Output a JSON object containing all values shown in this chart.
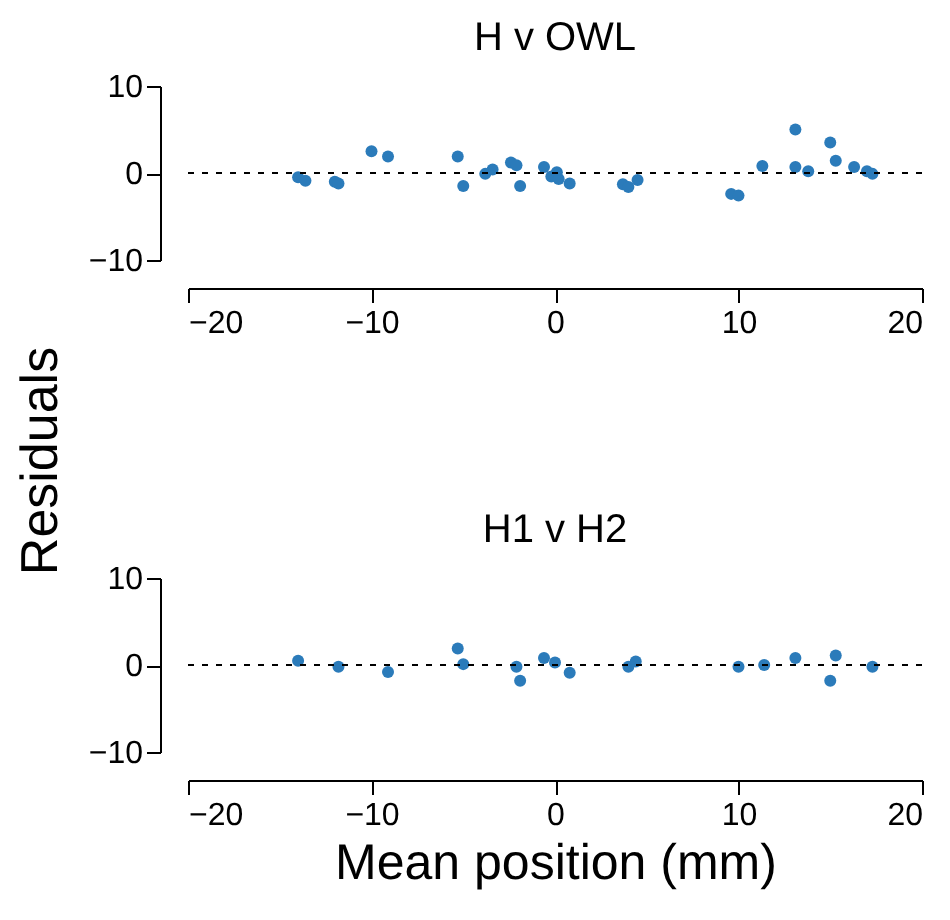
{
  "chart_data": [
    {
      "type": "scatter",
      "title": "H v OWL",
      "ylabel": "Residuals",
      "marker": "circle",
      "grid": false,
      "xlim": [
        -20,
        20
      ],
      "xticks": [
        -20,
        -10,
        0,
        10,
        20
      ],
      "ylim": [
        -10,
        10
      ],
      "yticks": [
        -10,
        0,
        10
      ],
      "ref_lines": [
        {
          "axis": "y",
          "value": 0,
          "color": "#000000",
          "line_style": "dashed"
        }
      ],
      "series": [
        {
          "color": "#2b7bba",
          "x": [
            -14.0,
            -13.6,
            -12.0,
            -11.8,
            -10.0,
            -9.1,
            -5.3,
            -5.0,
            -3.8,
            -3.4,
            -2.4,
            -2.1,
            -1.9,
            -0.6,
            -0.2,
            0.1,
            0.2,
            0.8,
            3.7,
            4.0,
            4.5,
            9.6,
            10.0,
            11.3,
            13.1,
            13.1,
            13.8,
            15.0,
            15.3,
            16.3,
            17.0,
            17.3
          ],
          "values": [
            -0.5,
            -0.9,
            -1.0,
            -1.2,
            2.5,
            1.9,
            1.9,
            -1.5,
            -0.1,
            0.4,
            1.2,
            0.9,
            -1.5,
            0.7,
            -0.4,
            0.1,
            -0.7,
            -1.2,
            -1.3,
            -1.6,
            -0.8,
            -2.4,
            -2.6,
            0.8,
            5.0,
            0.7,
            0.2,
            3.5,
            1.4,
            0.7,
            0.2,
            -0.1
          ]
        }
      ]
    },
    {
      "type": "scatter",
      "title": "H1 v H2",
      "xlabel": "Mean position (mm)",
      "marker": "circle",
      "grid": false,
      "xlim": [
        -20,
        20
      ],
      "xticks": [
        -20,
        -10,
        0,
        10,
        20
      ],
      "ylim": [
        -10,
        10
      ],
      "yticks": [
        -10,
        0,
        10
      ],
      "ref_lines": [
        {
          "axis": "y",
          "value": 0,
          "color": "#000000",
          "line_style": "dashed"
        }
      ],
      "series": [
        {
          "color": "#2b7bba",
          "x": [
            -14.0,
            -11.8,
            -9.1,
            -5.3,
            -5.0,
            -2.1,
            -1.9,
            -0.6,
            0.0,
            0.8,
            4.0,
            4.4,
            10.0,
            11.4,
            13.1,
            15.0,
            15.3,
            17.3
          ],
          "values": [
            0.5,
            -0.2,
            -0.8,
            1.9,
            0.1,
            -0.2,
            -1.8,
            0.8,
            0.3,
            -0.9,
            -0.2,
            0.4,
            -0.2,
            0.0,
            0.8,
            -1.8,
            1.1,
            -0.2
          ]
        }
      ]
    }
  ]
}
